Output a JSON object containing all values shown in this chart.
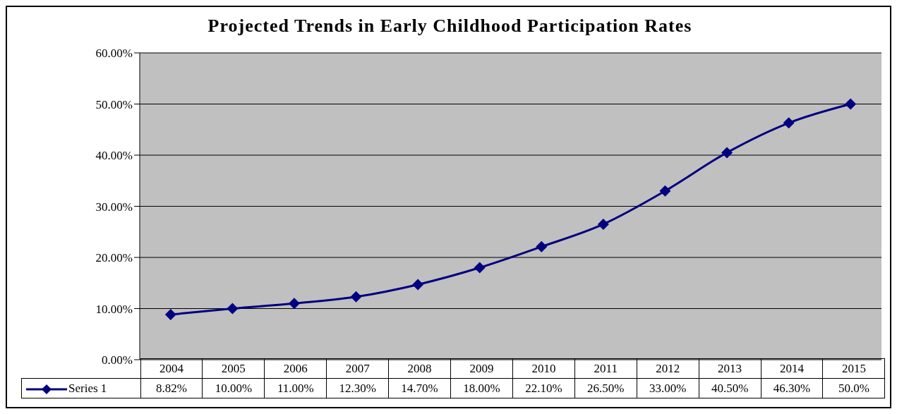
{
  "chart_data": {
    "type": "line",
    "title": "Projected Trends in Early Childhood Participation Rates",
    "categories": [
      "2004",
      "2005",
      "2006",
      "2007",
      "2008",
      "2009",
      "2010",
      "2011",
      "2012",
      "2013",
      "2014",
      "2015"
    ],
    "series": [
      {
        "name": "Series 1",
        "color": "#000080",
        "values": [
          8.82,
          10.0,
          11.0,
          12.3,
          14.7,
          18.0,
          22.1,
          26.5,
          33.0,
          40.5,
          46.3,
          50.0
        ],
        "value_labels": [
          "8.82%",
          "10.00%",
          "11.00%",
          "12.30%",
          "14.70%",
          "18.00%",
          "22.10%",
          "26.50%",
          "33.00%",
          "40.50%",
          "46.30%",
          "50.0%"
        ]
      }
    ],
    "ylim": [
      0,
      60
    ],
    "yticks": [
      {
        "value": 0,
        "label": "0.00%"
      },
      {
        "value": 10,
        "label": "10.00%"
      },
      {
        "value": 20,
        "label": "20.00%"
      },
      {
        "value": 30,
        "label": "30.00%"
      },
      {
        "value": 40,
        "label": "40.00%"
      },
      {
        "value": 50,
        "label": "50.00%"
      },
      {
        "value": 60,
        "label": "60.00%"
      }
    ],
    "grid": "y",
    "marker": "diamond",
    "legend": "bottom left",
    "line_style": "solid"
  }
}
